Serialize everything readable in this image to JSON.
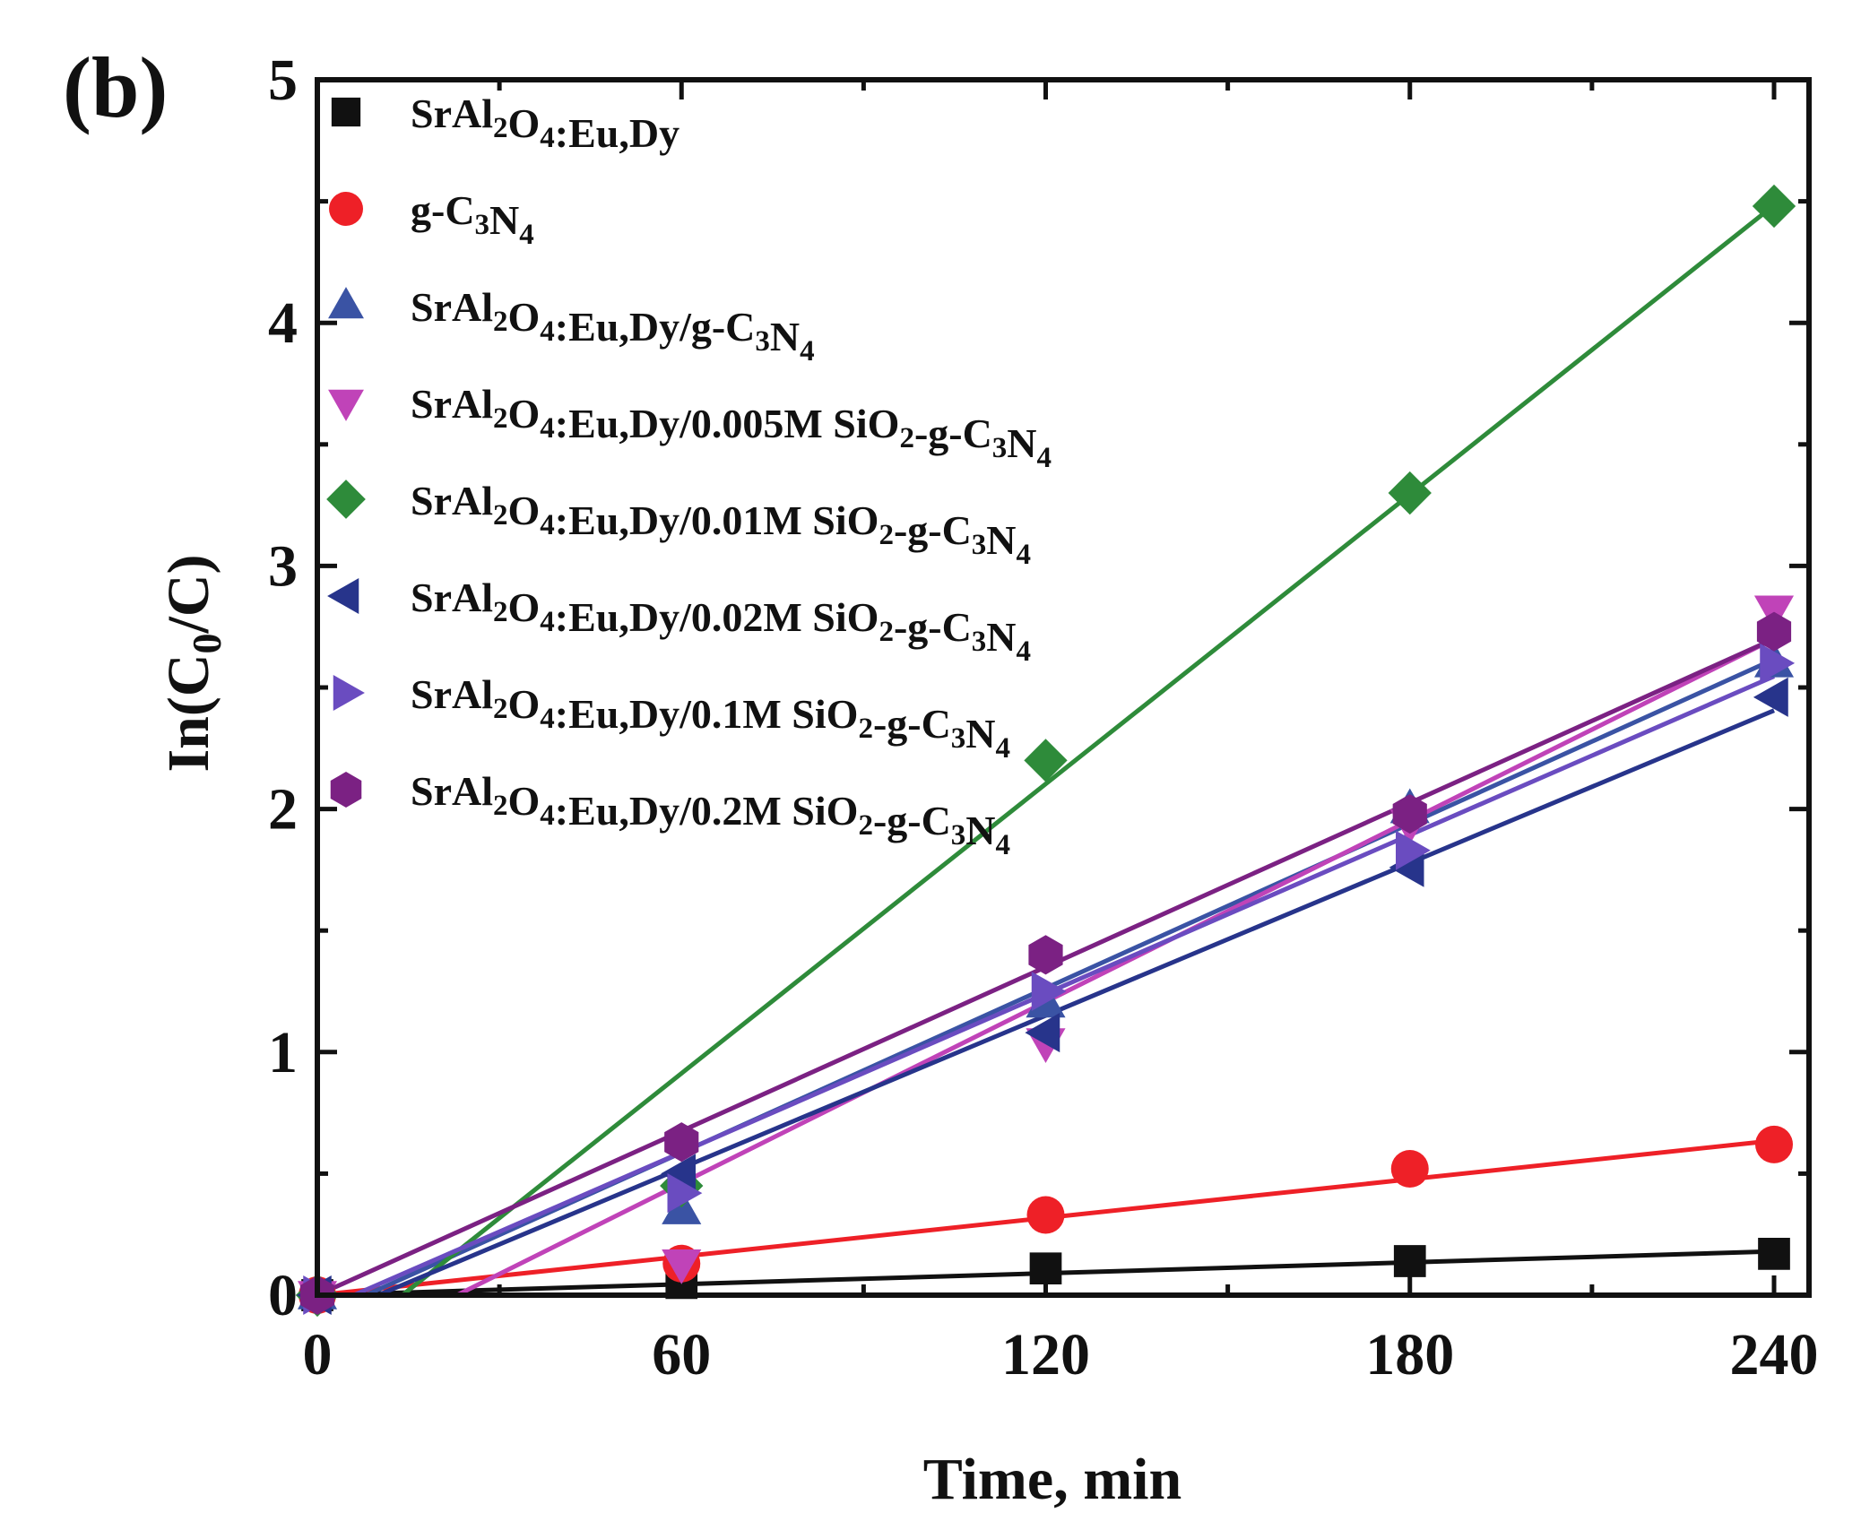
{
  "chart_data": {
    "type": "scatter",
    "panel_label": "(b)",
    "title": "",
    "xlabel": "Time, min",
    "ylabel": "In(C0/C)",
    "ylabel_main": "In(C",
    "ylabel_sub": "0",
    "ylabel_tail": "/C)",
    "xlim": [
      0,
      245
    ],
    "ylim": [
      0,
      5
    ],
    "x_ticks": [
      0,
      60,
      120,
      180,
      240
    ],
    "x_tick_labels": [
      "0",
      "60",
      "120",
      "180",
      "240"
    ],
    "y_ticks": [
      0,
      1,
      2,
      3,
      4,
      5
    ],
    "y_tick_labels": [
      "0",
      "1",
      "2",
      "3",
      "4",
      "5"
    ],
    "legend_position": "top-left",
    "series": [
      {
        "name": "SrAl2O4:Eu,Dy",
        "label_parts": [
          [
            "SrAl",
            ""
          ],
          [
            "2",
            "sub"
          ],
          [
            "O",
            ""
          ],
          [
            "4",
            "sub"
          ],
          [
            ":Eu,Dy",
            ""
          ]
        ],
        "marker": "square",
        "color": "#111111",
        "x": [
          0,
          60,
          120,
          180,
          240
        ],
        "y": [
          0.0,
          0.05,
          0.11,
          0.14,
          0.17
        ],
        "fit": {
          "slope": 0.00075,
          "intercept": 0.0,
          "x_start": 0
        }
      },
      {
        "name": "g-C3N4",
        "label_parts": [
          [
            "g-C",
            ""
          ],
          [
            "3",
            "sub"
          ],
          [
            "N",
            ""
          ],
          [
            "4",
            "sub"
          ]
        ],
        "marker": "circle",
        "color": "#ee2027",
        "x": [
          0,
          60,
          120,
          180,
          240
        ],
        "y": [
          0.0,
          0.13,
          0.33,
          0.52,
          0.62
        ],
        "fit": {
          "slope": 0.00265,
          "intercept": 0.0,
          "x_start": 0
        }
      },
      {
        "name": "SrAl2O4:Eu,Dy/g-C3N4",
        "label_parts": [
          [
            "SrAl",
            ""
          ],
          [
            "2",
            "sub"
          ],
          [
            "O",
            ""
          ],
          [
            "4",
            "sub"
          ],
          [
            ":Eu,Dy/g-C",
            ""
          ],
          [
            "3",
            "sub"
          ],
          [
            "N",
            ""
          ],
          [
            "4",
            "sub"
          ]
        ],
        "marker": "triangle-up",
        "color": "#3a53a4",
        "x": [
          0,
          60,
          120,
          180,
          240
        ],
        "y": [
          0.0,
          0.35,
          1.2,
          2.0,
          2.6
        ],
        "fit": {
          "slope": 0.0114,
          "intercept": -0.12,
          "x_start": 8
        }
      },
      {
        "name": "SrAl2O4:Eu,Dy/0.005M SiO2-g-C3N4",
        "label_parts": [
          [
            "SrAl",
            ""
          ],
          [
            "2",
            "sub"
          ],
          [
            "O",
            ""
          ],
          [
            "4",
            "sub"
          ],
          [
            ":Eu,Dy/0.005M SiO",
            ""
          ],
          [
            "2",
            "sub"
          ],
          [
            "-g-C",
            ""
          ],
          [
            "3",
            "sub"
          ],
          [
            "N",
            ""
          ],
          [
            "4",
            "sub"
          ]
        ],
        "marker": "triangle-down",
        "color": "#c043b8",
        "x": [
          0,
          60,
          120,
          180,
          240
        ],
        "y": [
          0.0,
          0.13,
          1.04,
          1.94,
          2.82
        ],
        "fit": {
          "slope": 0.01275,
          "intercept": -0.36,
          "x_start": 23
        }
      },
      {
        "name": "SrAl2O4:Eu,Dy/0.01M SiO2-g-C3N4",
        "label_parts": [
          [
            "SrAl",
            ""
          ],
          [
            "2",
            "sub"
          ],
          [
            "O",
            ""
          ],
          [
            "4",
            "sub"
          ],
          [
            ":Eu,Dy/0.01M SiO",
            ""
          ],
          [
            "2",
            "sub"
          ],
          [
            "-g-C",
            ""
          ],
          [
            "3",
            "sub"
          ],
          [
            "N",
            ""
          ],
          [
            "4",
            "sub"
          ]
        ],
        "marker": "diamond",
        "color": "#2e8b3a",
        "x": [
          0,
          60,
          120,
          180,
          240
        ],
        "y": [
          0.0,
          0.45,
          2.2,
          3.3,
          4.48
        ],
        "fit": {
          "slope": 0.01985,
          "intercept": -0.28,
          "x_start": 14
        }
      },
      {
        "name": "SrAl2O4:Eu,Dy/0.02M SiO2-g-C3N4",
        "label_parts": [
          [
            "SrAl",
            ""
          ],
          [
            "2",
            "sub"
          ],
          [
            "O",
            ""
          ],
          [
            "4",
            "sub"
          ],
          [
            ":Eu,Dy/0.02M SiO",
            ""
          ],
          [
            "2",
            "sub"
          ],
          [
            "-g-C",
            ""
          ],
          [
            "3",
            "sub"
          ],
          [
            "N",
            ""
          ],
          [
            "4",
            "sub"
          ]
        ],
        "marker": "triangle-left",
        "color": "#27348b",
        "x": [
          0,
          60,
          120,
          180,
          240
        ],
        "y": [
          0.0,
          0.5,
          1.08,
          1.76,
          2.46
        ],
        "fit": {
          "slope": 0.01048,
          "intercept": -0.11,
          "x_start": 10
        }
      },
      {
        "name": "SrAl2O4:Eu,Dy/0.1M SiO2-g-C3N4",
        "label_parts": [
          [
            "SrAl",
            ""
          ],
          [
            "2",
            "sub"
          ],
          [
            "O",
            ""
          ],
          [
            "4",
            "sub"
          ],
          [
            ":Eu,Dy/0.1M SiO",
            ""
          ],
          [
            "2",
            "sub"
          ],
          [
            "-g-C",
            ""
          ],
          [
            "3",
            "sub"
          ],
          [
            "N",
            ""
          ],
          [
            "4",
            "sub"
          ]
        ],
        "marker": "triangle-right",
        "color": "#6a4cc0",
        "x": [
          0,
          60,
          120,
          180,
          240
        ],
        "y": [
          0.0,
          0.42,
          1.25,
          1.83,
          2.6
        ],
        "fit": {
          "slope": 0.0109,
          "intercept": -0.07,
          "x_start": 6
        }
      },
      {
        "name": "SrAl2O4:Eu,Dy/0.2M SiO2-g-C3N4",
        "label_parts": [
          [
            "SrAl",
            ""
          ],
          [
            "2",
            "sub"
          ],
          [
            "O",
            ""
          ],
          [
            "4",
            "sub"
          ],
          [
            ":Eu,Dy/0.2M SiO",
            ""
          ],
          [
            "2",
            "sub"
          ],
          [
            "-g-C",
            ""
          ],
          [
            "3",
            "sub"
          ],
          [
            "N",
            ""
          ],
          [
            "4",
            "sub"
          ]
        ],
        "marker": "hexagon",
        "color": "#7b2183",
        "x": [
          0,
          60,
          120,
          180,
          240
        ],
        "y": [
          0.0,
          0.63,
          1.4,
          1.98,
          2.73
        ],
        "fit": {
          "slope": 0.01125,
          "intercept": 0.0,
          "x_start": 0
        }
      }
    ]
  }
}
